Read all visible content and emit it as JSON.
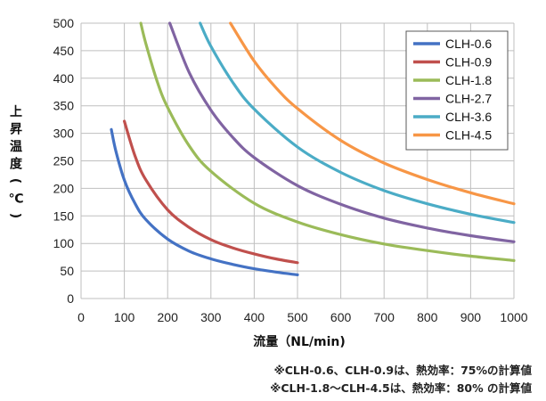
{
  "chart_data": {
    "type": "line",
    "ylabel": "上昇温度（℃）",
    "xlabel": "流量（NL/min)",
    "xlim": [
      0,
      1000
    ],
    "ylim": [
      0,
      500
    ],
    "xticks": [
      0,
      100,
      200,
      300,
      400,
      500,
      600,
      700,
      800,
      900,
      1000
    ],
    "yticks": [
      0,
      50,
      100,
      150,
      200,
      250,
      300,
      350,
      400,
      450,
      500
    ],
    "grid": true,
    "legend_position": "top-right",
    "series": [
      {
        "name": "CLH-0.6",
        "color": "#4472C4",
        "x": [
          70,
          80,
          100,
          125,
          150,
          200,
          250,
          300,
          350,
          400,
          450,
          500
        ],
        "y": [
          307,
          269,
          215,
          172,
          143,
          108,
          86,
          72,
          62,
          54,
          48,
          43
        ]
      },
      {
        "name": "CLH-0.9",
        "color": "#C0504D",
        "x": [
          100,
          125,
          150,
          200,
          250,
          300,
          350,
          400,
          450,
          500
        ],
        "y": [
          322,
          258,
          215,
          161,
          129,
          107,
          92,
          81,
          72,
          65
        ]
      },
      {
        "name": "CLH-1.8",
        "color": "#9BBB59",
        "x": [
          138,
          150,
          175,
          200,
          250,
          300,
          400,
          500,
          600,
          700,
          800,
          900,
          1000
        ],
        "y": [
          500,
          462,
          396,
          347,
          277,
          231,
          173,
          139,
          116,
          99,
          87,
          77,
          69
        ]
      },
      {
        "name": "CLH-2.7",
        "color": "#8064A2",
        "x": [
          205,
          250,
          300,
          350,
          400,
          500,
          600,
          700,
          800,
          900,
          1000
        ],
        "y": [
          500,
          410,
          342,
          293,
          256,
          205,
          171,
          146,
          128,
          114,
          103
        ]
      },
      {
        "name": "CLH-3.6",
        "color": "#4BACC6",
        "x": [
          275,
          300,
          350,
          400,
          500,
          600,
          700,
          800,
          900,
          1000
        ],
        "y": [
          500,
          458,
          393,
          344,
          275,
          229,
          196,
          172,
          153,
          138
        ]
      },
      {
        "name": "CLH-4.5",
        "color": "#F79646",
        "x": [
          345,
          400,
          450,
          500,
          600,
          700,
          800,
          900,
          1000
        ],
        "y": [
          500,
          431,
          383,
          345,
          287,
          246,
          216,
          192,
          172
        ]
      }
    ]
  },
  "notes": [
    "※CLH-0.6、CLH-0.9は、熱効率：75%の計算値",
    "※CLH-1.8～CLH-4.5は、熱効率：80% の計算値"
  ]
}
